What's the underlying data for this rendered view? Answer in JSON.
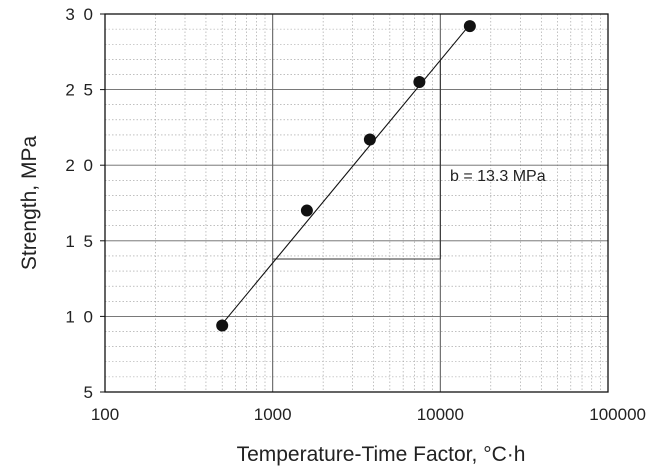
{
  "chart_data": {
    "type": "scatter",
    "title": "",
    "xlabel": "Temperature-Time Factor, °C·h",
    "ylabel": "Strength, MPa",
    "x_scale": "log",
    "xlim": [
      100,
      100000
    ],
    "ylim": [
      5,
      30
    ],
    "x_ticks": [
      {
        "value": 100,
        "label": "100"
      },
      {
        "value": 1000,
        "label": "1000"
      },
      {
        "value": 10000,
        "label": "10000"
      },
      {
        "value": 100000,
        "label": "100000"
      }
    ],
    "y_ticks": [
      {
        "value": 5,
        "label": "5"
      },
      {
        "value": 10,
        "label": "1 0"
      },
      {
        "value": 15,
        "label": "1 5"
      },
      {
        "value": 20,
        "label": "2 0"
      },
      {
        "value": 25,
        "label": "2 5"
      },
      {
        "value": 30,
        "label": "3 0"
      }
    ],
    "grid": true,
    "points": [
      {
        "x": 500,
        "y": 9.4
      },
      {
        "x": 1600,
        "y": 17.0
      },
      {
        "x": 3800,
        "y": 21.7
      },
      {
        "x": 7500,
        "y": 25.5
      },
      {
        "x": 15000,
        "y": 29.2
      }
    ],
    "fit_line": {
      "x": [
        500,
        15000
      ],
      "y": [
        9.5,
        29.3
      ]
    },
    "slope_triangle": {
      "x1": 1000,
      "x2": 10000,
      "y_base": 13.8
    },
    "annotation": "b = 13.3 MPa"
  }
}
